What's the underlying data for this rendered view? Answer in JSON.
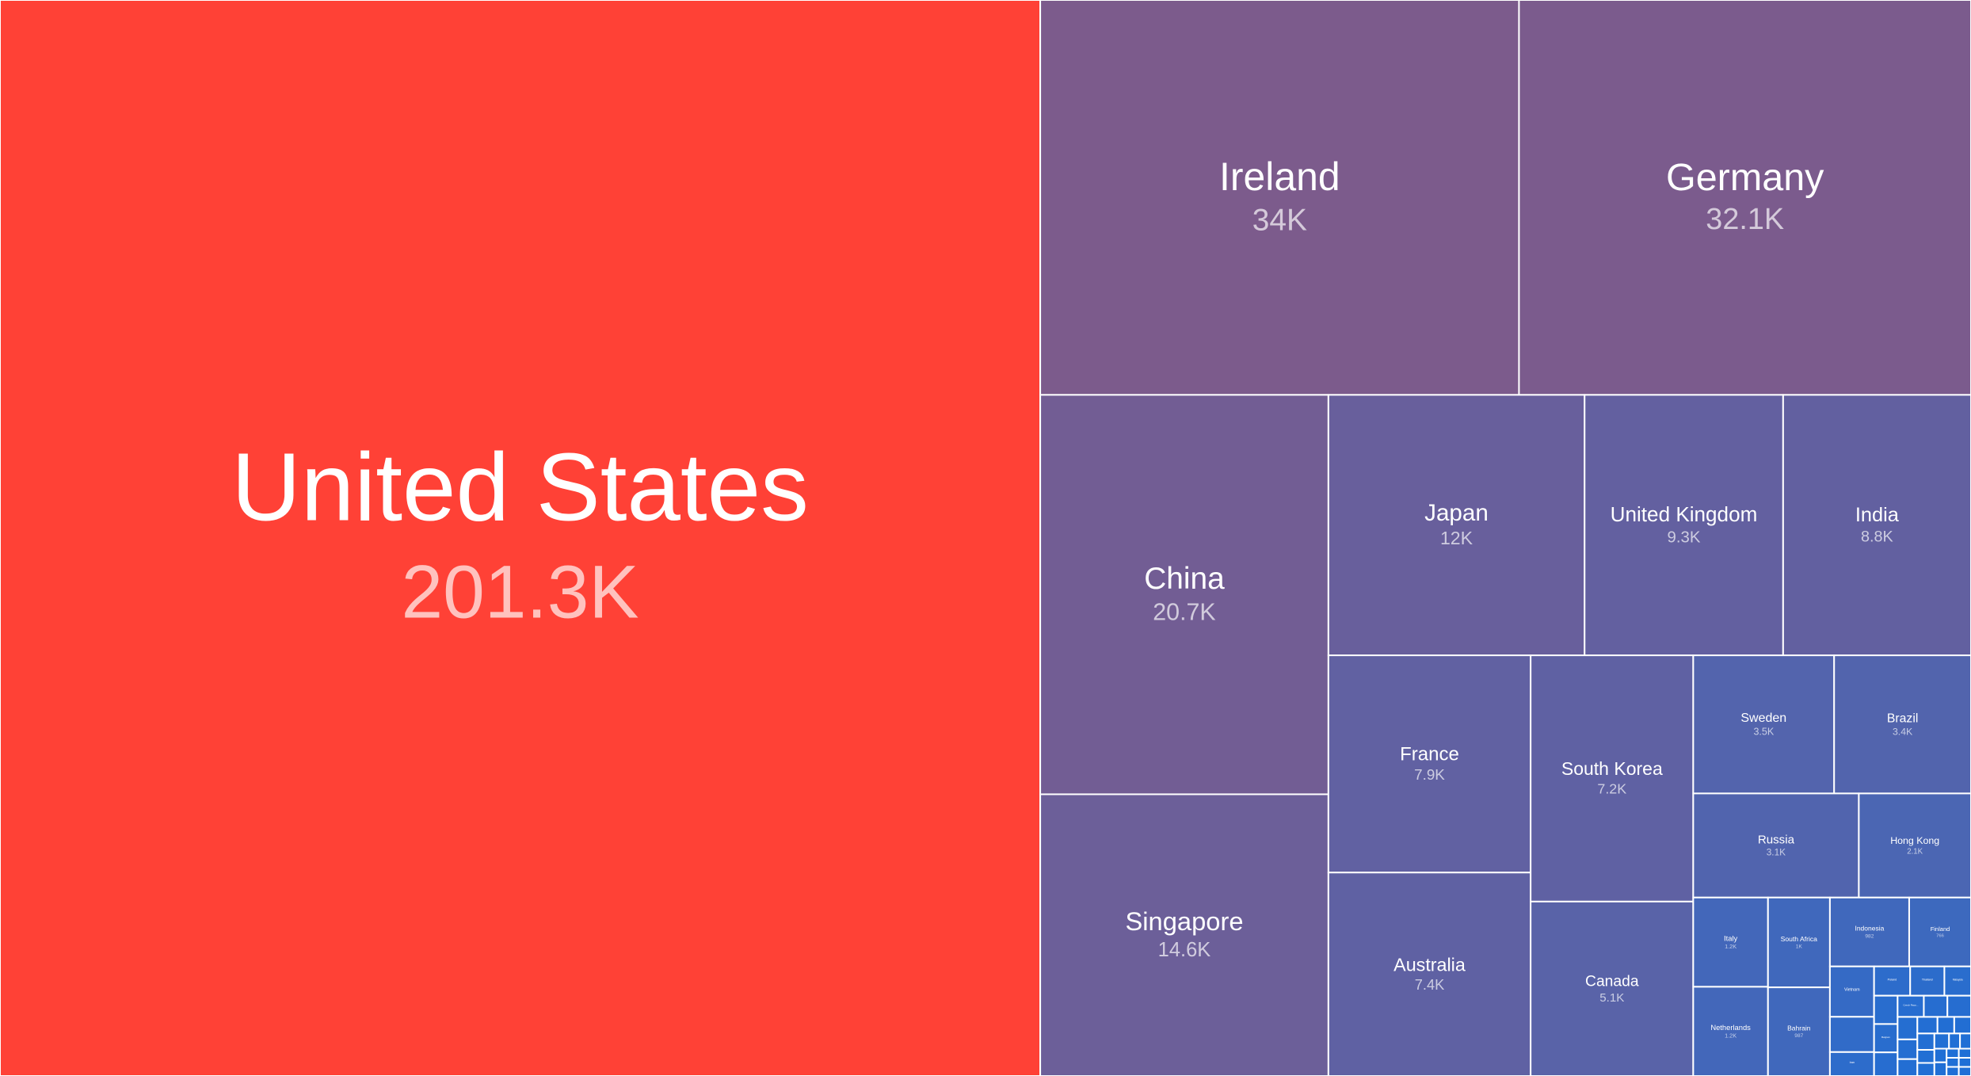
{
  "chart_data": {
    "type": "treemap",
    "title": "",
    "colors": {
      "high": "#ff4136",
      "mid": "#7c5b8c",
      "low": "#1f6fd6",
      "border": "#ffffff"
    },
    "items": [
      {
        "name": "United States",
        "label": "201.3K",
        "value": 201.3
      },
      {
        "name": "Ireland",
        "label": "34K",
        "value": 34.0
      },
      {
        "name": "Germany",
        "label": "32.1K",
        "value": 32.1
      },
      {
        "name": "China",
        "label": "20.7K",
        "value": 20.7
      },
      {
        "name": "Singapore",
        "label": "14.6K",
        "value": 14.6
      },
      {
        "name": "Japan",
        "label": "12K",
        "value": 12.0
      },
      {
        "name": "United Kingdom",
        "label": "9.3K",
        "value": 9.3
      },
      {
        "name": "India",
        "label": "8.8K",
        "value": 8.8
      },
      {
        "name": "France",
        "label": "7.9K",
        "value": 7.9
      },
      {
        "name": "Australia",
        "label": "7.4K",
        "value": 7.4
      },
      {
        "name": "South Korea",
        "label": "7.2K",
        "value": 7.2
      },
      {
        "name": "Canada",
        "label": "5.1K",
        "value": 5.1
      },
      {
        "name": "Sweden",
        "label": "3.5K",
        "value": 3.5
      },
      {
        "name": "Brazil",
        "label": "3.4K",
        "value": 3.4
      },
      {
        "name": "Russia",
        "label": "3.1K",
        "value": 3.1
      },
      {
        "name": "Hong Kong",
        "label": "2.1K",
        "value": 2.1
      },
      {
        "name": "Italy",
        "label": "1.2K",
        "value": 1.2
      },
      {
        "name": "Netherlands",
        "label": "1.2K",
        "value": 1.2
      },
      {
        "name": "South Africa",
        "label": "1K",
        "value": 1.0
      },
      {
        "name": "Bahrain",
        "label": "987",
        "value": 0.987
      },
      {
        "name": "Indonesia",
        "label": "982",
        "value": 0.982
      },
      {
        "name": "Finland",
        "label": "766",
        "value": 0.766
      },
      {
        "name": "Vietnam",
        "label": "",
        "value": 0.4
      },
      {
        "name": "",
        "label": "",
        "value": 0.28
      },
      {
        "name": "Iran",
        "label": "",
        "value": 0.19
      },
      {
        "name": "Poland",
        "label": "",
        "value": 0.19
      },
      {
        "name": "Thailand",
        "label": "",
        "value": 0.18
      },
      {
        "name": "",
        "label": "",
        "value": 0.12
      },
      {
        "name": "Malaysia",
        "label": "",
        "value": 0.14
      },
      {
        "name": "",
        "label": "",
        "value": 0.1
      },
      {
        "name": "",
        "label": "",
        "value": 0.09
      },
      {
        "name": "",
        "label": "",
        "value": 0.09
      },
      {
        "name": "",
        "label": "",
        "value": 0.08
      },
      {
        "name": "Belgium",
        "label": "",
        "value": 0.12
      },
      {
        "name": "Czech Repu...",
        "label": "",
        "value": 0.1
      },
      {
        "name": "",
        "label": "",
        "value": 0.07
      },
      {
        "name": "",
        "label": "",
        "value": 0.06
      },
      {
        "name": "",
        "label": "",
        "value": 0.06
      },
      {
        "name": "",
        "label": "",
        "value": 0.05
      },
      {
        "name": "",
        "label": "",
        "value": 0.05
      },
      {
        "name": "",
        "label": "",
        "value": 0.05
      },
      {
        "name": "",
        "label": "",
        "value": 0.04
      },
      {
        "name": "",
        "label": "",
        "value": 0.04
      },
      {
        "name": "",
        "label": "",
        "value": 0.04
      },
      {
        "name": "",
        "label": "",
        "value": 0.03
      },
      {
        "name": "",
        "label": "",
        "value": 0.03
      },
      {
        "name": "",
        "label": "",
        "value": 0.03
      },
      {
        "name": "",
        "label": "",
        "value": 0.03
      },
      {
        "name": "",
        "label": "",
        "value": 0.02
      },
      {
        "name": "",
        "label": "",
        "value": 0.02
      },
      {
        "name": "",
        "label": "",
        "value": 0.02
      },
      {
        "name": "",
        "label": "",
        "value": 0.02
      },
      {
        "name": "",
        "label": "",
        "value": 0.02
      },
      {
        "name": "",
        "label": "",
        "value": 0.02
      }
    ]
  }
}
